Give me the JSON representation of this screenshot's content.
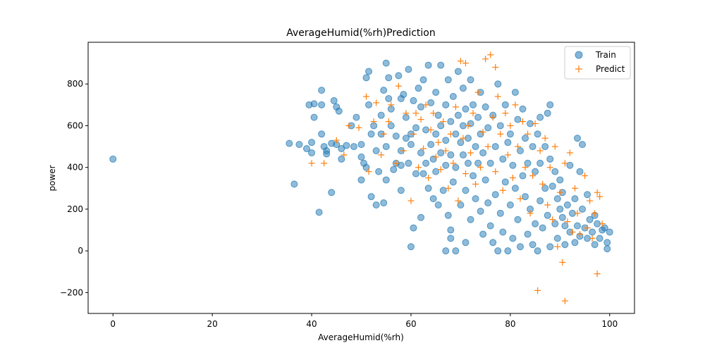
{
  "chart_data": {
    "type": "scatter",
    "title": "AverageHumid(%rh)Prediction",
    "xlabel": "AverageHumid(%rh)",
    "ylabel": "power",
    "xlim": [
      -5,
      105
    ],
    "ylim": [
      -300,
      1000
    ],
    "xticks": [
      0,
      20,
      40,
      60,
      80,
      100
    ],
    "yticks": [
      -200,
      0,
      200,
      400,
      600,
      800
    ],
    "legend_position": "top-right",
    "series": [
      {
        "name": "Train",
        "marker": "circle",
        "color": "#1f77b4",
        "points": [
          [
            0,
            440
          ],
          [
            35.5,
            515
          ],
          [
            36.5,
            320
          ],
          [
            37.5,
            510
          ],
          [
            39,
            490
          ],
          [
            39.5,
            700
          ],
          [
            40,
            520
          ],
          [
            40,
            470
          ],
          [
            40.5,
            640
          ],
          [
            40.5,
            705
          ],
          [
            41.5,
            185
          ],
          [
            42,
            770
          ],
          [
            42,
            560
          ],
          [
            42,
            700
          ],
          [
            42.5,
            500
          ],
          [
            43,
            480
          ],
          [
            43,
            465
          ],
          [
            44,
            515
          ],
          [
            44,
            280
          ],
          [
            44.5,
            720
          ],
          [
            45,
            690
          ],
          [
            45,
            510
          ],
          [
            45.5,
            670
          ],
          [
            46,
            490
          ],
          [
            46,
            440
          ],
          [
            47,
            505
          ],
          [
            48,
            600
          ],
          [
            48.5,
            500
          ],
          [
            49,
            640
          ],
          [
            50,
            340
          ],
          [
            50,
            510
          ],
          [
            50,
            450
          ],
          [
            50.5,
            420
          ],
          [
            51,
            830
          ],
          [
            51,
            400
          ],
          [
            51.5,
            860
          ],
          [
            51.5,
            700
          ],
          [
            52,
            260
          ],
          [
            52,
            560
          ],
          [
            52.5,
            600
          ],
          [
            53,
            220
          ],
          [
            53,
            480
          ],
          [
            53.5,
            380
          ],
          [
            54,
            650
          ],
          [
            54,
            560
          ],
          [
            54.5,
            770
          ],
          [
            54.5,
            230
          ],
          [
            55,
            900
          ],
          [
            55,
            340
          ],
          [
            55,
            500
          ],
          [
            55.5,
            830
          ],
          [
            55.5,
            730
          ],
          [
            56,
            680
          ],
          [
            56,
            600
          ],
          [
            56.5,
            390
          ],
          [
            57,
            420
          ],
          [
            57,
            550
          ],
          [
            57.5,
            840
          ],
          [
            58,
            730
          ],
          [
            58,
            480
          ],
          [
            58,
            410
          ],
          [
            58,
            290
          ],
          [
            58.5,
            750
          ],
          [
            59,
            640
          ],
          [
            59,
            540
          ],
          [
            59.5,
            870
          ],
          [
            59.5,
            420
          ],
          [
            60,
            20
          ],
          [
            60,
            560
          ],
          [
            60,
            510
          ],
          [
            60.5,
            720
          ],
          [
            60.5,
            110
          ],
          [
            61,
            590
          ],
          [
            61,
            370
          ],
          [
            61.5,
            780
          ],
          [
            62,
            690
          ],
          [
            62,
            470
          ],
          [
            62,
            160
          ],
          [
            62.5,
            820
          ],
          [
            62.5,
            370
          ],
          [
            63,
            580
          ],
          [
            63,
            420
          ],
          [
            63.5,
            890
          ],
          [
            63.5,
            300
          ],
          [
            64,
            710
          ],
          [
            64,
            510
          ],
          [
            64.5,
            440
          ],
          [
            64.5,
            250
          ],
          [
            65,
            760
          ],
          [
            65,
            560
          ],
          [
            65,
            380
          ],
          [
            65.5,
            650
          ],
          [
            65.5,
            220
          ],
          [
            66,
            890
          ],
          [
            66,
            600
          ],
          [
            66,
            470
          ],
          [
            66.5,
            290
          ],
          [
            67,
            700
          ],
          [
            67,
            530
          ],
          [
            67,
            410
          ],
          [
            67,
            0
          ],
          [
            67.5,
            820
          ],
          [
            67.5,
            170
          ],
          [
            68,
            620
          ],
          [
            68,
            460
          ],
          [
            68,
            100
          ],
          [
            68,
            60
          ],
          [
            68.5,
            740
          ],
          [
            68.5,
            330
          ],
          [
            69,
            560
          ],
          [
            69,
            400
          ],
          [
            69,
            0
          ],
          [
            69.5,
            860
          ],
          [
            69.5,
            650
          ],
          [
            70,
            520
          ],
          [
            70,
            220
          ],
          [
            70.5,
            780
          ],
          [
            70.5,
            600
          ],
          [
            70.5,
            460
          ],
          [
            71,
            680
          ],
          [
            71,
            290
          ],
          [
            71,
            40
          ],
          [
            71.5,
            540
          ],
          [
            71.5,
            420
          ],
          [
            72,
            820
          ],
          [
            72,
            610
          ],
          [
            72,
            150
          ],
          [
            72.5,
            700
          ],
          [
            72.5,
            360
          ],
          [
            73,
            500
          ],
          [
            73,
            250
          ],
          [
            73.5,
            640
          ],
          [
            73.5,
            420
          ],
          [
            74,
            760
          ],
          [
            74,
            560
          ],
          [
            74,
            190
          ],
          [
            74.5,
            470
          ],
          [
            74.5,
            80
          ],
          [
            75,
            690
          ],
          [
            75,
            340
          ],
          [
            75.5,
            590
          ],
          [
            75.5,
            230
          ],
          [
            76,
            420
          ],
          [
            76,
            120
          ],
          [
            76.5,
            650
          ],
          [
            76.5,
            40
          ],
          [
            77,
            500
          ],
          [
            77,
            270
          ],
          [
            77.5,
            800
          ],
          [
            77.5,
            0
          ],
          [
            78,
            600
          ],
          [
            78,
            180
          ],
          [
            78.5,
            440
          ],
          [
            78.5,
            90
          ],
          [
            79,
            700
          ],
          [
            79,
            330
          ],
          [
            79.5,
            520
          ],
          [
            79.5,
            0
          ],
          [
            80,
            560
          ],
          [
            80,
            220
          ],
          [
            80.5,
            410
          ],
          [
            80.5,
            60
          ],
          [
            81,
            760
          ],
          [
            81,
            300
          ],
          [
            81.5,
            630
          ],
          [
            81.5,
            150
          ],
          [
            82,
            480
          ],
          [
            82,
            20
          ],
          [
            82.5,
            680
          ],
          [
            82.5,
            360
          ],
          [
            83,
            540
          ],
          [
            83,
            260
          ],
          [
            83.5,
            420
          ],
          [
            83.5,
            80
          ],
          [
            84,
            610
          ],
          [
            84,
            200
          ],
          [
            84.5,
            500
          ],
          [
            84.5,
            30
          ],
          [
            85,
            380
          ],
          [
            85,
            130
          ],
          [
            85.5,
            560
          ],
          [
            85.5,
            0
          ],
          [
            86,
            640
          ],
          [
            86,
            420
          ],
          [
            86,
            240
          ],
          [
            86.5,
            110
          ],
          [
            87,
            500
          ],
          [
            87,
            300
          ],
          [
            87.5,
            660
          ],
          [
            87.5,
            170
          ],
          [
            88,
            700
          ],
          [
            88,
            440
          ],
          [
            88,
            20
          ],
          [
            88.5,
            310
          ],
          [
            89,
            380
          ],
          [
            89,
            130
          ],
          [
            89.5,
            250
          ],
          [
            89.5,
            60
          ],
          [
            90,
            200
          ],
          [
            90,
            340
          ],
          [
            90.5,
            160
          ],
          [
            90.5,
            280
          ],
          [
            91,
            120
          ],
          [
            91,
            30
          ],
          [
            91.5,
            220
          ],
          [
            92,
            410
          ],
          [
            92,
            90
          ],
          [
            92.5,
            180
          ],
          [
            93,
            250
          ],
          [
            93,
            40
          ],
          [
            93.5,
            540
          ],
          [
            93.5,
            120
          ],
          [
            94,
            380
          ],
          [
            94,
            70
          ],
          [
            94.5,
            510
          ],
          [
            94.5,
            200
          ],
          [
            95,
            110
          ],
          [
            95.5,
            270
          ],
          [
            95.5,
            60
          ],
          [
            96,
            150
          ],
          [
            96.5,
            90
          ],
          [
            97,
            170
          ],
          [
            97,
            30
          ],
          [
            97.5,
            130
          ],
          [
            98,
            60
          ],
          [
            98.5,
            100
          ],
          [
            99,
            110
          ],
          [
            99.5,
            40
          ],
          [
            99.5,
            10
          ],
          [
            100,
            90
          ]
        ]
      },
      {
        "name": "Predict",
        "marker": "plus",
        "color": "#ff7f0e",
        "points": [
          [
            40,
            420
          ],
          [
            42.5,
            420
          ],
          [
            45,
            530
          ],
          [
            46.5,
            460
          ],
          [
            47.5,
            600
          ],
          [
            49.5,
            590
          ],
          [
            51,
            740
          ],
          [
            51.5,
            380
          ],
          [
            52.5,
            620
          ],
          [
            53,
            710
          ],
          [
            54,
            460
          ],
          [
            54.5,
            560
          ],
          [
            55.5,
            620
          ],
          [
            56,
            700
          ],
          [
            57,
            420
          ],
          [
            57.5,
            790
          ],
          [
            58.5,
            480
          ],
          [
            59,
            660
          ],
          [
            60,
            240
          ],
          [
            60.5,
            560
          ],
          [
            61,
            660
          ],
          [
            61.5,
            400
          ],
          [
            62,
            630
          ],
          [
            62.5,
            490
          ],
          [
            63,
            700
          ],
          [
            63.5,
            350
          ],
          [
            64,
            580
          ],
          [
            64.5,
            660
          ],
          [
            65,
            450
          ],
          [
            65.5,
            520
          ],
          [
            66,
            390
          ],
          [
            66.5,
            620
          ],
          [
            67,
            480
          ],
          [
            67.5,
            300
          ],
          [
            68,
            560
          ],
          [
            68.5,
            420
          ],
          [
            69,
            690
          ],
          [
            69.5,
            240
          ],
          [
            70,
            910
          ],
          [
            70.5,
            540
          ],
          [
            71,
            900
          ],
          [
            71,
            370
          ],
          [
            71.5,
            600
          ],
          [
            72,
            470
          ],
          [
            72.5,
            660
          ],
          [
            73,
            320
          ],
          [
            73.5,
            760
          ],
          [
            74,
            400
          ],
          [
            74.5,
            570
          ],
          [
            75,
            920
          ],
          [
            75.5,
            500
          ],
          [
            76,
            940
          ],
          [
            76.5,
            640
          ],
          [
            77,
            880
          ],
          [
            77,
            380
          ],
          [
            77.5,
            740
          ],
          [
            78,
            560
          ],
          [
            78.5,
            290
          ],
          [
            79,
            660
          ],
          [
            79.5,
            460
          ],
          [
            80,
            600
          ],
          [
            80.5,
            350
          ],
          [
            81,
            700
          ],
          [
            81.5,
            500
          ],
          [
            82,
            250
          ],
          [
            82.5,
            620
          ],
          [
            83,
            400
          ],
          [
            83.5,
            560
          ],
          [
            84,
            180
          ],
          [
            84.5,
            360
          ],
          [
            85,
            610
          ],
          [
            85.5,
            -190
          ],
          [
            86,
            480
          ],
          [
            86.5,
            320
          ],
          [
            87,
            540
          ],
          [
            87.5,
            220
          ],
          [
            88,
            400
          ],
          [
            88.5,
            150
          ],
          [
            89,
            500
          ],
          [
            89.5,
            20
          ],
          [
            90,
            280
          ],
          [
            90.5,
            -55
          ],
          [
            91,
            -240
          ],
          [
            91,
            420
          ],
          [
            91.5,
            140
          ],
          [
            92,
            470
          ],
          [
            92.5,
            90
          ],
          [
            93,
            300
          ],
          [
            93.5,
            180
          ],
          [
            94,
            80
          ],
          [
            95,
            360
          ],
          [
            95.5,
            110
          ],
          [
            96,
            240
          ],
          [
            96.5,
            60
          ],
          [
            97,
            180
          ],
          [
            97.5,
            -110
          ],
          [
            97.5,
            280
          ],
          [
            98,
            260
          ],
          [
            98.5,
            130
          ]
        ]
      }
    ]
  }
}
